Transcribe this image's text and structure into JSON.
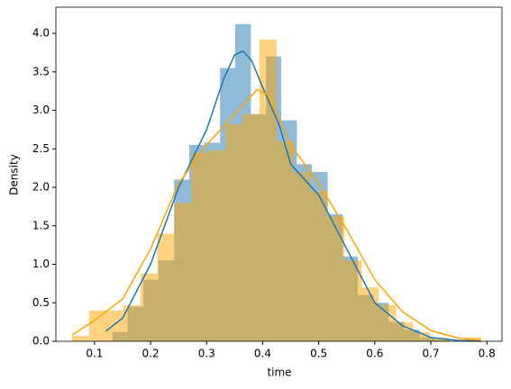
{
  "chart_data": {
    "type": "histogram",
    "xlabel": "time",
    "ylabel": "Density",
    "xlim": [
      0.031,
      0.827
    ],
    "ylim": [
      0,
      4.34
    ],
    "xticks": [
      0.1,
      0.2,
      0.3,
      0.4,
      0.5,
      0.6,
      0.7,
      0.8
    ],
    "yticks": [
      {
        "value": 0,
        "label": "0.0"
      },
      0.5,
      {
        "value": 1,
        "label": "1.0"
      },
      1.5,
      {
        "value": 2,
        "label": "2.0"
      },
      2.5,
      {
        "value": 3,
        "label": "3.0"
      },
      3.5,
      {
        "value": 4,
        "label": "4.0"
      }
    ],
    "series": [
      {
        "color": "#1f77b4",
        "alpha": 0.5,
        "bins": [
          0.132,
          0.159,
          0.187,
          0.214,
          0.242,
          0.269,
          0.296,
          0.324,
          0.351,
          0.379,
          0.406,
          0.433,
          0.461,
          0.488,
          0.516,
          0.543,
          0.57,
          0.598,
          0.625,
          0.653,
          0.68,
          0.707,
          0.735,
          0.762,
          0.789
        ],
        "values": [
          0.12,
          0.45,
          0.8,
          1.05,
          2.1,
          2.55,
          2.58,
          3.55,
          4.12,
          2.95,
          3.7,
          2.87,
          2.3,
          2.2,
          1.65,
          1.1,
          0.6,
          0.5,
          0.25,
          0.15,
          0.05,
          0.02,
          0,
          0.03
        ],
        "kde": {
          "x": [
            0.12,
            0.15,
            0.2,
            0.25,
            0.3,
            0.33,
            0.35,
            0.365,
            0.38,
            0.4,
            0.43,
            0.45,
            0.5,
            0.55,
            0.6,
            0.65,
            0.7,
            0.75,
            0.79
          ],
          "y": [
            0.13,
            0.3,
            1.0,
            2.0,
            2.75,
            3.4,
            3.72,
            3.77,
            3.65,
            3.3,
            2.8,
            2.3,
            1.9,
            1.2,
            0.5,
            0.2,
            0.05,
            0.01,
            0.0
          ]
        }
      },
      {
        "color": "#ffa500",
        "alpha": 0.5,
        "bins": [
          0.06,
          0.09,
          0.121,
          0.151,
          0.182,
          0.212,
          0.242,
          0.273,
          0.303,
          0.334,
          0.364,
          0.394,
          0.425,
          0.455,
          0.486,
          0.516,
          0.546,
          0.577,
          0.607,
          0.638,
          0.668,
          0.698,
          0.729,
          0.759,
          0.79
        ],
        "values": [
          0.07,
          0.4,
          0.4,
          0.47,
          0.88,
          1.4,
          1.8,
          2.45,
          2.48,
          2.82,
          2.95,
          3.92,
          2.6,
          2.2,
          1.95,
          1.62,
          1.05,
          0.7,
          0.47,
          0.25,
          0.12,
          0.05,
          0,
          0.05
        ],
        "kde": {
          "x": [
            0.06,
            0.1,
            0.15,
            0.2,
            0.25,
            0.3,
            0.35,
            0.39,
            0.41,
            0.45,
            0.5,
            0.55,
            0.6,
            0.65,
            0.7,
            0.75,
            0.79
          ],
          "y": [
            0.08,
            0.27,
            0.55,
            1.2,
            2.05,
            2.55,
            2.95,
            3.27,
            3.2,
            2.55,
            2.05,
            1.45,
            0.8,
            0.38,
            0.14,
            0.04,
            0.01
          ]
        }
      }
    ]
  }
}
